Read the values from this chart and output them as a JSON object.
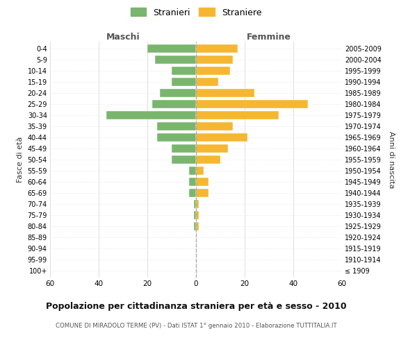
{
  "age_groups": [
    "100+",
    "95-99",
    "90-94",
    "85-89",
    "80-84",
    "75-79",
    "70-74",
    "65-69",
    "60-64",
    "55-59",
    "50-54",
    "45-49",
    "40-44",
    "35-39",
    "30-34",
    "25-29",
    "20-24",
    "15-19",
    "10-14",
    "5-9",
    "0-4"
  ],
  "birth_years": [
    "≤ 1909",
    "1910-1914",
    "1915-1919",
    "1920-1924",
    "1925-1929",
    "1930-1934",
    "1935-1939",
    "1940-1944",
    "1945-1949",
    "1950-1954",
    "1955-1959",
    "1960-1964",
    "1965-1969",
    "1970-1974",
    "1975-1979",
    "1980-1984",
    "1985-1989",
    "1990-1994",
    "1995-1999",
    "2000-2004",
    "2005-2009"
  ],
  "maschi": [
    0,
    0,
    0,
    0,
    1,
    1,
    1,
    3,
    3,
    3,
    10,
    10,
    16,
    16,
    37,
    18,
    15,
    10,
    10,
    17,
    20
  ],
  "femmine": [
    0,
    0,
    0,
    0,
    1,
    1,
    1,
    5,
    5,
    3,
    10,
    13,
    21,
    15,
    34,
    46,
    24,
    9,
    14,
    15,
    17
  ],
  "male_color": "#7ab56e",
  "female_color": "#f5b731",
  "male_label": "Stranieri",
  "female_label": "Straniere",
  "title": "Popolazione per cittadinanza straniera per età e sesso - 2010",
  "subtitle": "COMUNE DI MIRADOLO TERME (PV) - Dati ISTAT 1° gennaio 2010 - Elaborazione TUTTITALIA.IT",
  "xlabel_left": "Maschi",
  "xlabel_right": "Femmine",
  "ylabel_left": "Fasce di età",
  "ylabel_right": "Anni di nascita",
  "xlim": 60,
  "background_color": "#ffffff",
  "grid_color": "#dddddd",
  "header_color": "#555555",
  "dashed_line_color": "#aaaaaa"
}
